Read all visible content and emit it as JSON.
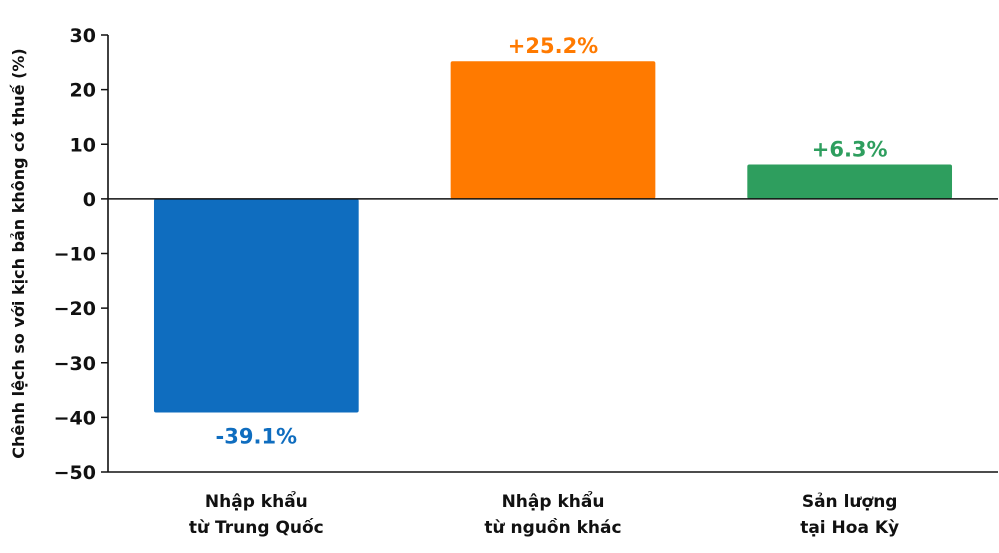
{
  "chart_data": {
    "type": "bar",
    "title": "",
    "xlabel": "",
    "ylabel": "Chênh lệch so với kịch bản không có thuế (%)",
    "ylim": [
      -50,
      30
    ],
    "yticks": [
      30,
      20,
      10,
      0,
      -10,
      -20,
      -30,
      -40,
      -50
    ],
    "ytick_labels": [
      "30",
      "20",
      "10",
      "0",
      "−10",
      "−20",
      "−30",
      "−40",
      "−50"
    ],
    "grid": false,
    "categories": [
      [
        "Nhập khẩu",
        "từ Trung Quốc"
      ],
      [
        "Nhập khẩu",
        "từ nguồn khác"
      ],
      [
        "Sản lượng",
        "tại Hoa Kỳ"
      ]
    ],
    "values": [
      -39.1,
      25.2,
      6.3
    ],
    "data_labels": [
      "-39.1%",
      "+25.2%",
      "+6.3%"
    ],
    "colors": [
      "#0f6dbf",
      "#ff7a00",
      "#2e9e5e"
    ]
  }
}
